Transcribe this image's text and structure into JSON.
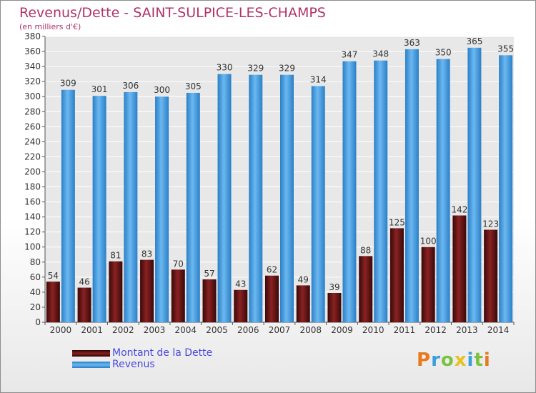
{
  "header": {
    "title": "Revenus/Dette - SAINT-SULPICE-LES-CHAMPS",
    "subtitle": "(en milliers d'€)"
  },
  "chart_data": {
    "type": "bar",
    "categories": [
      "2000",
      "2001",
      "2002",
      "2003",
      "2004",
      "2005",
      "2006",
      "2007",
      "2008",
      "2009",
      "2010",
      "2011",
      "2012",
      "2013",
      "2014"
    ],
    "series": [
      {
        "name": "Montant de la Dette",
        "color": "#7a1a1a",
        "values": [
          54,
          46,
          81,
          83,
          70,
          57,
          43,
          62,
          49,
          39,
          88,
          125,
          100,
          142,
          123
        ]
      },
      {
        "name": "Revenus",
        "color": "#4a9ee0",
        "values": [
          309,
          301,
          306,
          300,
          305,
          330,
          329,
          329,
          314,
          347,
          348,
          363,
          350,
          365,
          355
        ]
      }
    ],
    "ylim": [
      0,
      380
    ],
    "yticks": [
      0,
      20,
      40,
      60,
      80,
      100,
      120,
      140,
      160,
      180,
      200,
      220,
      240,
      260,
      280,
      300,
      320,
      340,
      360,
      380
    ],
    "grid": true,
    "legend": "bottom-left"
  },
  "legend": {
    "items": [
      {
        "label": "Montant de la Dette",
        "color": "#7a1a1a"
      },
      {
        "label": "Revenus",
        "color": "#4a9ee0"
      }
    ]
  },
  "logo": {
    "letters": [
      "P",
      "r",
      "o",
      "x",
      "i",
      "t",
      "i"
    ],
    "colors": [
      "#e87a1e",
      "#3a9fdc",
      "#7cc242",
      "#e8c21e",
      "#3a9fdc",
      "#7cc242",
      "#e87a1e"
    ]
  }
}
